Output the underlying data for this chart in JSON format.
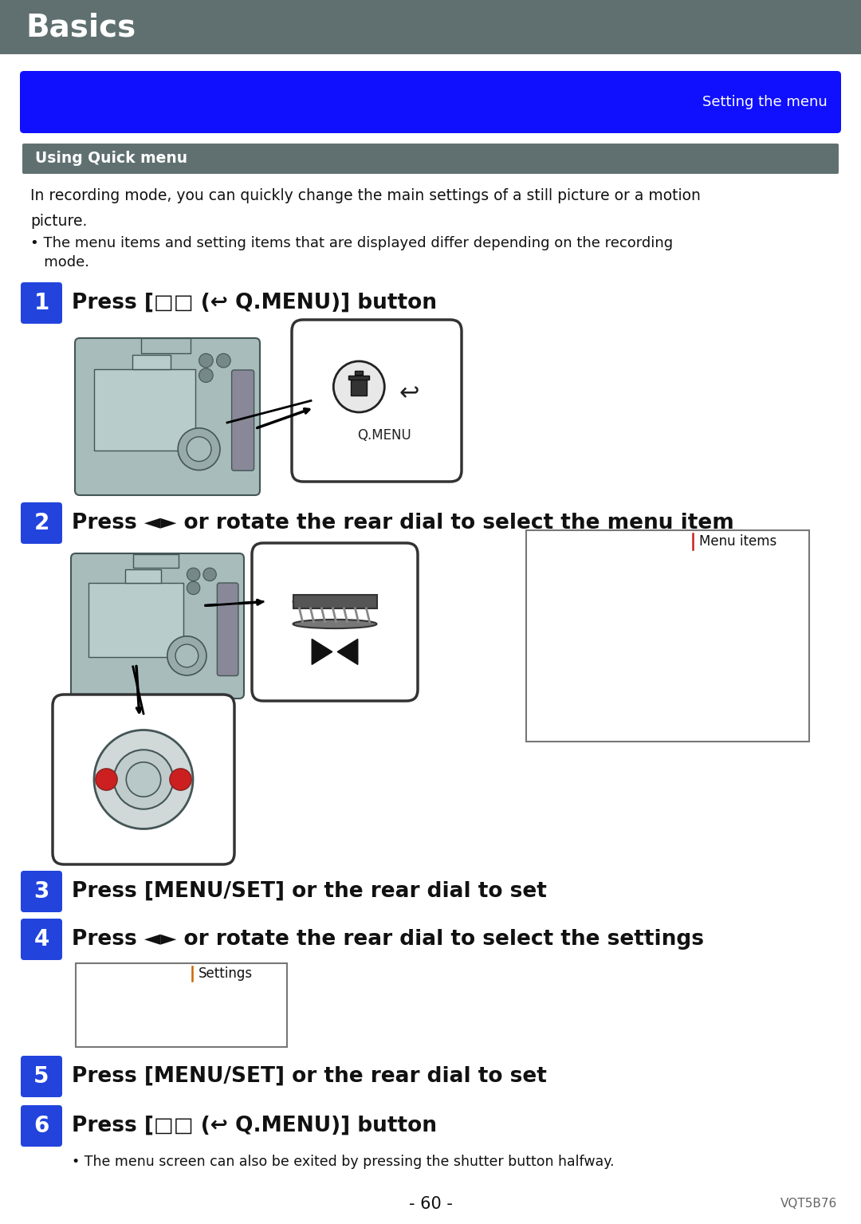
{
  "page_bg": "#ffffff",
  "header_bg": "#607070",
  "header_text": "Basics",
  "header_text_color": "#ffffff",
  "blue_banner_bg": "#1010ff",
  "blue_banner_text": "Setting the menu",
  "blue_banner_text_color": "#ffffff",
  "section_header_bg": "#607070",
  "section_header_text": "Using Quick menu",
  "section_header_text_color": "#ffffff",
  "body_text_color": "#111111",
  "step_bg": "#2244dd",
  "step_text_color": "#ffffff",
  "cam_body": "#a8bcbc",
  "cam_edge": "#445555",
  "cam_lcd": "#b8cccc",
  "body_intro1": "In recording mode, you can quickly change the main settings of a still picture or a motion",
  "body_intro2": "picture.",
  "body_bullet": "• The menu items and setting items that are displayed differ depending on the recording",
  "body_bullet2": "   mode.",
  "step1_text": "Press [□□ (↩ Q.MENU)] button",
  "step2_text": "Press ◄► or rotate the rear dial to select the menu item",
  "step3_text": "Press [MENU/SET] or the rear dial to set",
  "step4_text": "Press ◄► or rotate the rear dial to select the settings",
  "step5_text": "Press [MENU/SET] or the rear dial to set",
  "step6_text": "Press [□□ (↩ Q.MENU)] button",
  "step6_note": "• The menu screen can also be exited by pressing the shutter button halfway.",
  "menu_items_label": "Menu items",
  "settings_label": "Settings",
  "footer_text": "- 60 -",
  "footer_right": "VQT5B76"
}
